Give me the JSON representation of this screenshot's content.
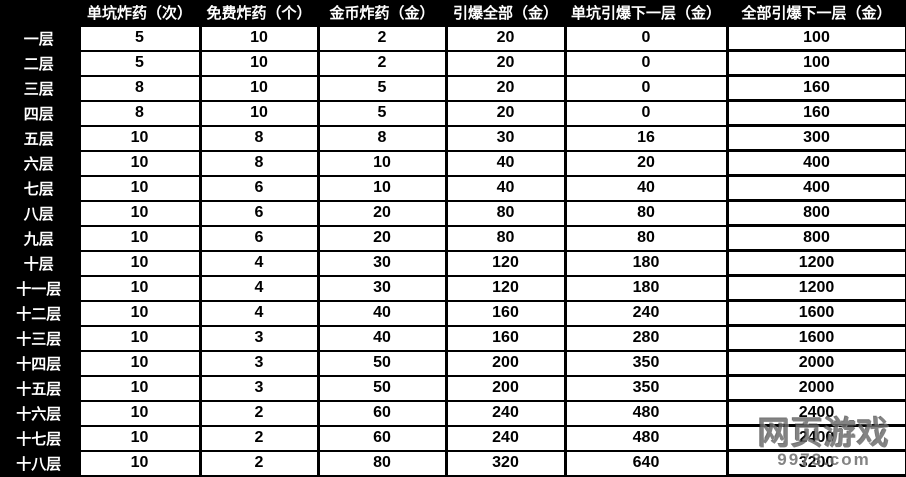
{
  "chart_data": {
    "type": "table",
    "title": "",
    "columns": [
      "单坑炸药（次）",
      "免费炸药（个）",
      "金币炸药（金）",
      "引爆全部（金）",
      "单坑引爆下一层（金）",
      "全部引爆下一层（金）"
    ],
    "row_labels": [
      "一层",
      "二层",
      "三层",
      "四层",
      "五层",
      "六层",
      "七层",
      "八层",
      "九层",
      "十层",
      "十一层",
      "十二层",
      "十三层",
      "十四层",
      "十五层",
      "十六层",
      "十七层",
      "十八层"
    ],
    "rows": [
      [
        5,
        10,
        2,
        20,
        0,
        100
      ],
      [
        5,
        10,
        2,
        20,
        0,
        100
      ],
      [
        8,
        10,
        5,
        20,
        0,
        160
      ],
      [
        8,
        10,
        5,
        20,
        0,
        160
      ],
      [
        10,
        8,
        8,
        30,
        16,
        300
      ],
      [
        10,
        8,
        10,
        40,
        20,
        400
      ],
      [
        10,
        6,
        10,
        40,
        40,
        400
      ],
      [
        10,
        6,
        20,
        80,
        80,
        800
      ],
      [
        10,
        6,
        20,
        80,
        80,
        800
      ],
      [
        10,
        4,
        30,
        120,
        180,
        1200
      ],
      [
        10,
        4,
        30,
        120,
        180,
        1200
      ],
      [
        10,
        4,
        40,
        160,
        240,
        1600
      ],
      [
        10,
        3,
        40,
        160,
        280,
        1600
      ],
      [
        10,
        3,
        50,
        200,
        350,
        2000
      ],
      [
        10,
        3,
        50,
        200,
        350,
        2000
      ],
      [
        10,
        2,
        60,
        240,
        480,
        2400
      ],
      [
        10,
        2,
        60,
        240,
        480,
        2400
      ],
      [
        10,
        2,
        80,
        320,
        640,
        3200
      ]
    ],
    "layout": {
      "grid": true,
      "header_position": "top",
      "row_labels_position": "left"
    }
  },
  "watermark": {
    "line1": "网页游戏",
    "line2": "9973.com"
  },
  "colors": {
    "table_bg": "#000000",
    "cell_bg": "#ffffff",
    "header_text": "#ffffff",
    "cell_text": "#000000",
    "watermark": "#6e6e6e"
  }
}
